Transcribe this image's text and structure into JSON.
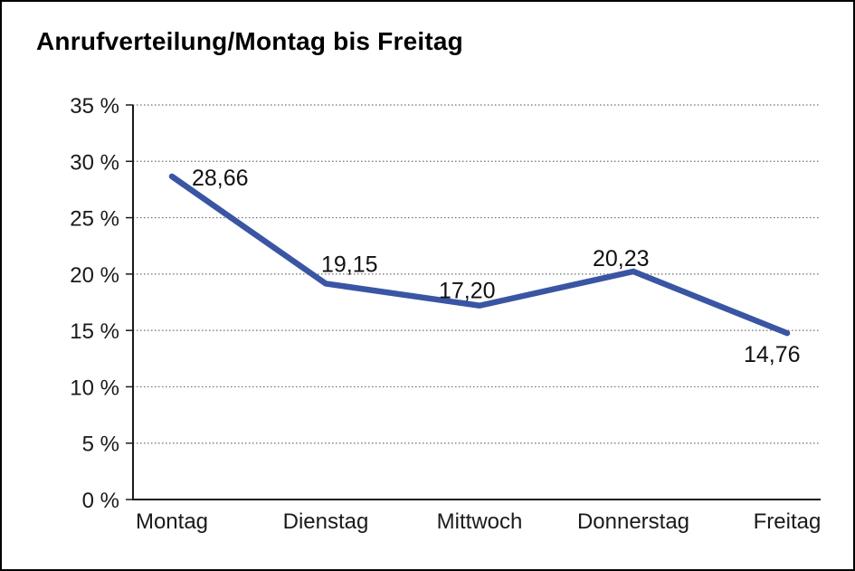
{
  "header": {
    "title": "Anrufverteilung/Montag bis Freitag"
  },
  "chart_data": {
    "type": "line",
    "title": "Anrufverteilung/Montag bis Freitag",
    "categories": [
      "Montag",
      "Dienstag",
      "Mittwoch",
      "Donnerstag",
      "Freitag"
    ],
    "values": [
      28.66,
      19.15,
      17.2,
      20.23,
      14.76
    ],
    "point_labels": [
      "28,66",
      "19,15",
      "17,20",
      "20,23",
      "14,76"
    ],
    "xlabel": "",
    "ylabel": "",
    "ylim": [
      0,
      35
    ],
    "ytick_step": 5,
    "ytick_labels": [
      "0 %",
      "5 %",
      "10 %",
      "15 %",
      "20 %",
      "25 %",
      "30 %",
      "35 %"
    ],
    "grid": "horizontal-dotted",
    "legend_position": "none",
    "colors": {
      "line": "#3A55A3",
      "axis": "#1a1a1a",
      "grid": "#6e6e6e",
      "text": "#1a1a1a"
    }
  }
}
